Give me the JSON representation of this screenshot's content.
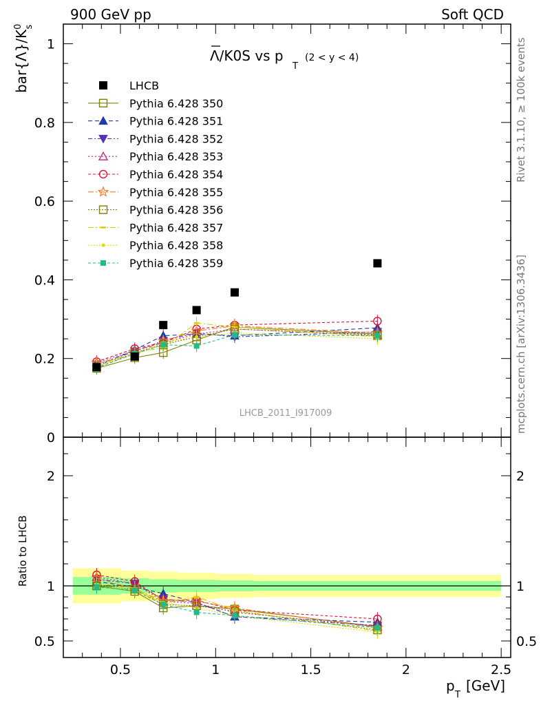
{
  "header": {
    "left": "900 GeV pp",
    "right": "Soft QCD"
  },
  "title": {
    "main": "Λ/K0S vs p",
    "main_sub": "T",
    "range": "(2 < y < 4)"
  },
  "ylabel": {
    "prefix": "bar{Λ}/K",
    "sup": "0",
    "sub": "s"
  },
  "ratio_ylabel": "Ratio to LHCB",
  "xlabel": {
    "p": "p",
    "sub": "T",
    "unit": "[GeV]"
  },
  "side": {
    "rivet": "Rivet 3.1.10, ≥ 100k events",
    "mcplots": "mcplots.cern.ch [arXiv:1306.3436]"
  },
  "analysis_id": "LHCB_2011_I917009",
  "colors": {
    "data": "#000000",
    "band_inner": "#99ff99",
    "band_outer": "#ffff99"
  },
  "chart_data": [
    {
      "type": "scatter",
      "panel": "main",
      "ylim": [
        0,
        1.05
      ],
      "xlim": [
        0.2,
        2.55
      ],
      "yticks": [
        "0",
        "0.2",
        "0.4",
        "0.6",
        "0.8",
        "1"
      ],
      "x": [
        0.375,
        0.575,
        0.725,
        0.9,
        1.1,
        1.85
      ],
      "data": {
        "name": "LHCB",
        "values": [
          0.178,
          0.205,
          0.285,
          0.323,
          0.368,
          0.442
        ]
      },
      "series": [
        {
          "name": "Pythia 6.428 350",
          "color": "#808000",
          "marker": "square-open",
          "dash": "",
          "values": [
            0.175,
            0.202,
            0.215,
            0.247,
            0.28,
            0.262
          ]
        },
        {
          "name": "Pythia 6.428 351",
          "color": "#1f3ba8",
          "marker": "triangle-up",
          "dash": "6,4",
          "values": [
            0.18,
            0.222,
            0.258,
            0.262,
            0.258,
            0.278
          ]
        },
        {
          "name": "Pythia 6.428 352",
          "color": "#5533aa",
          "marker": "triangle-down",
          "dash": "6,3,2,3",
          "values": [
            0.185,
            0.218,
            0.245,
            0.265,
            0.255,
            0.268
          ]
        },
        {
          "name": "Pythia 6.428 353",
          "color": "#c02080",
          "marker": "triangle-open",
          "dash": "2,3",
          "values": [
            0.19,
            0.22,
            0.24,
            0.262,
            0.275,
            0.26
          ]
        },
        {
          "name": "Pythia 6.428 354",
          "color": "#dd1133",
          "marker": "circle-open",
          "dash": "4,3",
          "values": [
            0.192,
            0.225,
            0.24,
            0.275,
            0.285,
            0.295
          ]
        },
        {
          "name": "Pythia 6.428 355",
          "color": "#ff7722",
          "marker": "star-open",
          "dash": "8,3,2,3",
          "values": [
            0.188,
            0.21,
            0.245,
            0.27,
            0.283,
            0.265
          ]
        },
        {
          "name": "Pythia 6.428 356",
          "color": "#808000",
          "marker": "square-open",
          "dash": "2,2",
          "values": [
            0.178,
            0.215,
            0.235,
            0.255,
            0.275,
            0.258
          ]
        },
        {
          "name": "Pythia 6.428 357",
          "color": "#ddcc00",
          "marker": "dash",
          "dash": "8,3,2,3",
          "values": [
            0.182,
            0.215,
            0.228,
            0.29,
            0.28,
            0.255
          ]
        },
        {
          "name": "Pythia 6.428 358",
          "color": "#dddd00",
          "marker": "dot",
          "dash": "2,2",
          "values": [
            0.18,
            0.21,
            0.24,
            0.255,
            0.265,
            0.25
          ]
        },
        {
          "name": "Pythia 6.428 359",
          "color": "#22bb88",
          "marker": "square-small",
          "dash": "4,3",
          "values": [
            0.176,
            0.212,
            0.235,
            0.232,
            0.26,
            0.258
          ]
        }
      ]
    },
    {
      "type": "scatter",
      "panel": "ratio",
      "ylim": [
        0.35,
        2.35
      ],
      "xlim": [
        0.2,
        2.55
      ],
      "yticks": [
        "0.5",
        "1",
        "2"
      ],
      "xticks": [
        "0.5",
        "1",
        "1.5",
        "2",
        "2.5"
      ],
      "band_inner": [
        {
          "x": [
            0.25,
            0.5
          ],
          "lo": 0.92,
          "hi": 1.08
        },
        {
          "x": [
            0.5,
            0.65
          ],
          "lo": 0.93,
          "hi": 1.07
        },
        {
          "x": [
            0.65,
            0.8
          ],
          "lo": 0.94,
          "hi": 1.06
        },
        {
          "x": [
            0.8,
            1.0
          ],
          "lo": 0.945,
          "hi": 1.055
        },
        {
          "x": [
            1.0,
            1.2
          ],
          "lo": 0.95,
          "hi": 1.05
        },
        {
          "x": [
            1.2,
            2.5
          ],
          "lo": 0.955,
          "hi": 1.045
        }
      ],
      "band_outer": [
        {
          "x": [
            0.25,
            0.5
          ],
          "lo": 0.84,
          "hi": 1.16
        },
        {
          "x": [
            0.5,
            0.65
          ],
          "lo": 0.86,
          "hi": 1.14
        },
        {
          "x": [
            0.65,
            0.8
          ],
          "lo": 0.87,
          "hi": 1.13
        },
        {
          "x": [
            0.8,
            1.0
          ],
          "lo": 0.88,
          "hi": 1.12
        },
        {
          "x": [
            1.0,
            1.2
          ],
          "lo": 0.89,
          "hi": 1.11
        },
        {
          "x": [
            1.2,
            2.5
          ],
          "lo": 0.9,
          "hi": 1.1
        }
      ],
      "series": [
        {
          "name": "Pythia 6.428 350",
          "values": [
            1.0,
            0.95,
            0.8,
            0.82,
            0.79,
            0.63
          ]
        },
        {
          "name": "Pythia 6.428 351",
          "values": [
            1.04,
            0.99,
            0.93,
            0.85,
            0.72,
            0.67
          ]
        },
        {
          "name": "Pythia 6.428 352",
          "values": [
            1.06,
            1.02,
            0.88,
            0.85,
            0.72,
            0.64
          ]
        },
        {
          "name": "Pythia 6.428 353",
          "values": [
            1.08,
            1.02,
            0.86,
            0.84,
            0.76,
            0.63
          ]
        },
        {
          "name": "Pythia 6.428 354",
          "values": [
            1.1,
            1.04,
            0.87,
            0.87,
            0.78,
            0.7
          ]
        },
        {
          "name": "Pythia 6.428 355",
          "values": [
            1.07,
            0.97,
            0.86,
            0.86,
            0.8,
            0.62
          ]
        },
        {
          "name": "Pythia 6.428 356",
          "values": [
            1.0,
            0.97,
            0.83,
            0.82,
            0.77,
            0.6
          ]
        },
        {
          "name": "Pythia 6.428 357",
          "values": [
            1.02,
            0.98,
            0.84,
            0.9,
            0.78,
            0.59
          ]
        },
        {
          "name": "Pythia 6.428 358",
          "values": [
            1.01,
            0.96,
            0.85,
            0.8,
            0.73,
            0.58
          ]
        },
        {
          "name": "Pythia 6.428 359",
          "values": [
            0.99,
            0.96,
            0.83,
            0.76,
            0.73,
            0.62
          ]
        }
      ]
    }
  ]
}
